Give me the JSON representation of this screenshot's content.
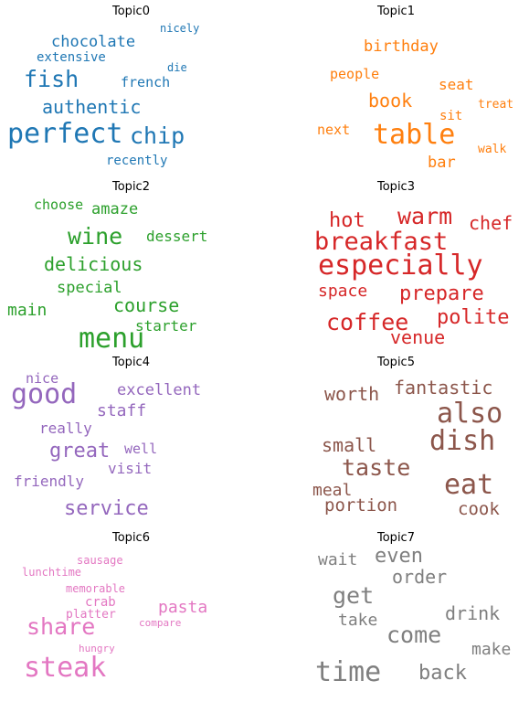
{
  "chart_data": {
    "type": "wordcloud",
    "grid": "4x2",
    "panels": [
      {
        "title": "Topic0",
        "color": "#1f77b4",
        "words": [
          "perfect",
          "chip",
          "fish",
          "authentic",
          "chocolate",
          "french",
          "extensive",
          "recently",
          "nicely",
          "die"
        ],
        "weights": [
          1.0,
          0.82,
          0.82,
          0.66,
          0.55,
          0.5,
          0.46,
          0.46,
          0.4,
          0.36
        ]
      },
      {
        "title": "Topic1",
        "color": "#ff7f0e",
        "words": [
          "table",
          "book",
          "birthday",
          "bar",
          "seat",
          "people",
          "next",
          "sit",
          "walk",
          "treat"
        ],
        "weights": [
          1.0,
          0.66,
          0.55,
          0.55,
          0.5,
          0.46,
          0.46,
          0.42,
          0.4,
          0.38
        ]
      },
      {
        "title": "Topic2",
        "color": "#2ca02c",
        "words": [
          "menu",
          "wine",
          "course",
          "delicious",
          "main",
          "special",
          "amaze",
          "dessert",
          "starter",
          "choose"
        ],
        "weights": [
          1.0,
          0.9,
          0.74,
          0.74,
          0.66,
          0.6,
          0.55,
          0.5,
          0.5,
          0.5
        ]
      },
      {
        "title": "Topic3",
        "color": "#d62728",
        "words": [
          "especially",
          "breakfast",
          "coffee",
          "warm",
          "prepare",
          "hot",
          "polite",
          "venue",
          "chef",
          "space"
        ],
        "weights": [
          1.0,
          0.9,
          0.82,
          0.82,
          0.74,
          0.74,
          0.74,
          0.66,
          0.66,
          0.55
        ]
      },
      {
        "title": "Topic4",
        "color": "#9467bd",
        "words": [
          "good",
          "service",
          "great",
          "staff",
          "excellent",
          "visit",
          "friendly",
          "really",
          "well",
          "nice"
        ],
        "weights": [
          1.0,
          0.76,
          0.76,
          0.62,
          0.58,
          0.54,
          0.54,
          0.5,
          0.5,
          0.5
        ]
      },
      {
        "title": "Topic5",
        "color": "#8c564b",
        "words": [
          "also",
          "dish",
          "eat",
          "taste",
          "fantastic",
          "worth",
          "small",
          "portion",
          "cook",
          "meal"
        ],
        "weights": [
          1.0,
          1.0,
          1.0,
          0.88,
          0.76,
          0.72,
          0.7,
          0.66,
          0.66,
          0.62
        ]
      },
      {
        "title": "Topic6",
        "color": "#e377c2",
        "words": [
          "steak",
          "share",
          "pasta",
          "crab",
          "platter",
          "memorable",
          "sausage",
          "lunchtime",
          "compare",
          "hungry"
        ],
        "weights": [
          1.0,
          0.88,
          0.62,
          0.46,
          0.42,
          0.42,
          0.42,
          0.42,
          0.4,
          0.4
        ]
      },
      {
        "title": "Topic7",
        "color": "#7f7f7f",
        "words": [
          "time",
          "come",
          "get",
          "back",
          "even",
          "order",
          "drink",
          "wait",
          "take",
          "make"
        ],
        "weights": [
          1.0,
          0.84,
          0.84,
          0.76,
          0.72,
          0.66,
          0.66,
          0.6,
          0.6,
          0.6
        ]
      }
    ]
  }
}
